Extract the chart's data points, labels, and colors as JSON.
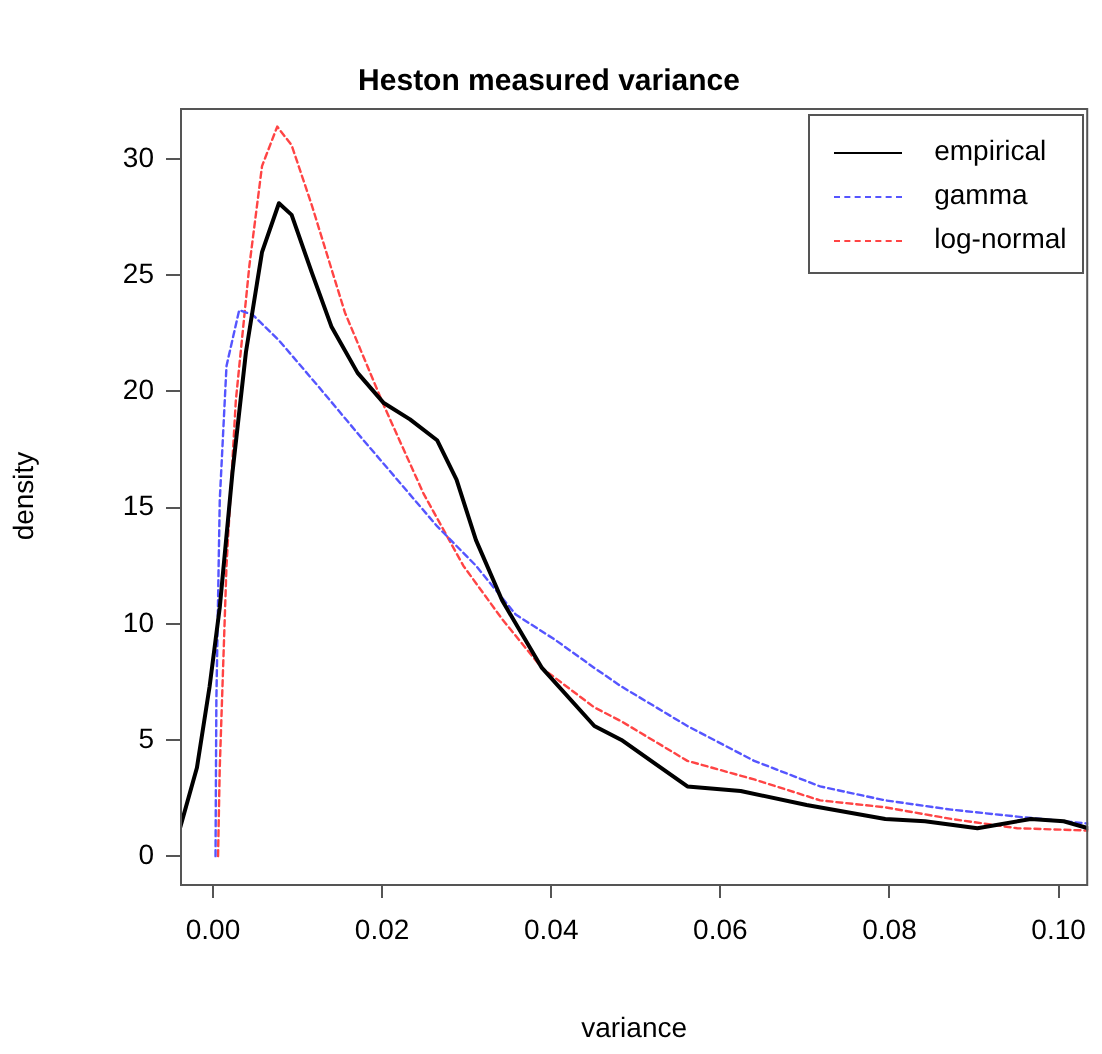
{
  "chart_data": {
    "type": "line",
    "title": "Heston measured variance",
    "xlabel": "variance",
    "ylabel": "density",
    "xlim": [
      -0.0039,
      0.1035
    ],
    "ylim": [
      -1.2,
      32.2
    ],
    "xticks": [
      {
        "value": 0,
        "label": "0.00"
      },
      {
        "value": 0.02,
        "label": "0.02"
      },
      {
        "value": 0.04,
        "label": "0.04"
      },
      {
        "value": 0.06,
        "label": "0.06"
      },
      {
        "value": 0.08,
        "label": "0.08"
      },
      {
        "value": 0.1,
        "label": "0.10"
      }
    ],
    "yticks": [
      0,
      5,
      10,
      15,
      20,
      25,
      30
    ],
    "grid": false,
    "legend": "top right",
    "marker": "none",
    "series": [
      {
        "name": "empirical",
        "color": "#000000",
        "line_style": "solid",
        "x": [
          -0.0039,
          -0.0019,
          -0.0004,
          0.0008,
          0.0023,
          0.0039,
          0.0058,
          0.0078,
          0.0093,
          0.0117,
          0.014,
          0.0171,
          0.0202,
          0.0233,
          0.0265,
          0.0288,
          0.0311,
          0.0342,
          0.0389,
          0.0451,
          0.0483,
          0.0561,
          0.0624,
          0.0702,
          0.0795,
          0.0842,
          0.0904,
          0.0967,
          0.1006,
          0.1035
        ],
        "values": [
          1.2,
          3.8,
          7.3,
          10.7,
          16.5,
          21.7,
          26,
          28.1,
          27.6,
          25.1,
          22.8,
          20.8,
          19.5,
          18.8,
          17.9,
          16.2,
          13.6,
          11,
          8.1,
          5.6,
          5.0,
          3.0,
          2.8,
          2.2,
          1.6,
          1.5,
          1.2,
          1.6,
          1.5,
          1.2
        ]
      },
      {
        "name": "gamma",
        "color": "#5555ff",
        "line_style": "dashed",
        "x": [
          0.0003,
          0.0004,
          0.0008,
          0.0016,
          0.0031,
          0.0047,
          0.0078,
          0.0125,
          0.0171,
          0.0218,
          0.0265,
          0.0311,
          0.0358,
          0.0405,
          0.0451,
          0.0483,
          0.0561,
          0.064,
          0.0718,
          0.0795,
          0.0873,
          0.0951,
          0.1035
        ],
        "values": [
          0,
          6.7,
          15.3,
          21.1,
          23.5,
          23.3,
          22.2,
          20.2,
          18.2,
          16.2,
          14.2,
          12.5,
          10.4,
          9.3,
          8.1,
          7.3,
          5.6,
          4.1,
          3.0,
          2.4,
          2.0,
          1.7,
          1.4
        ]
      },
      {
        "name": "log-normal",
        "color": "#ff4444",
        "line_style": "dashed",
        "x": [
          0.0006,
          0.0008,
          0.0016,
          0.0027,
          0.0043,
          0.0058,
          0.0076,
          0.0093,
          0.0117,
          0.0156,
          0.0202,
          0.0249,
          0.0296,
          0.0342,
          0.0389,
          0.0451,
          0.0483,
          0.0561,
          0.064,
          0.0718,
          0.0795,
          0.0873,
          0.0951,
          0.1035
        ],
        "values": [
          0,
          3.8,
          12.5,
          19.6,
          25.4,
          29.7,
          31.4,
          30.6,
          28,
          23.4,
          19.4,
          15.6,
          12.5,
          10.2,
          8.1,
          6.4,
          5.8,
          4.1,
          3.3,
          2.4,
          2.1,
          1.6,
          1.2,
          1.1
        ]
      }
    ]
  }
}
